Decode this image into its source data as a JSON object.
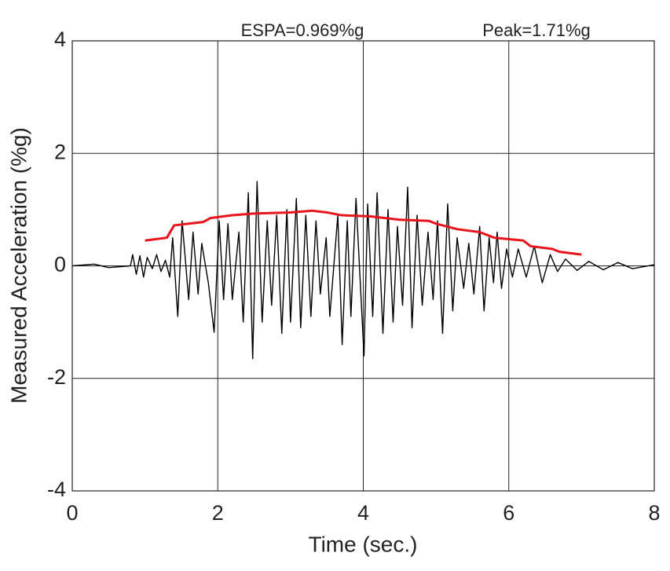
{
  "chart_data": {
    "type": "line",
    "xlabel": "Time (sec.)",
    "ylabel": "Measured Acceleration (%g)",
    "annotations": [
      "ESPA=0.969%g",
      "Peak=1.71%g"
    ],
    "xlim": [
      0,
      8
    ],
    "xticks": [
      0,
      2,
      4,
      6,
      8
    ],
    "ylim": [
      -4,
      4
    ],
    "yticks": [
      -4,
      -2,
      0,
      2,
      4
    ],
    "grid": true,
    "series": [
      {
        "color": "#000000",
        "x": [
          0,
          0.3,
          0.5,
          0.8,
          0.83,
          0.88,
          0.93,
          0.98,
          1.03,
          1.1,
          1.16,
          1.22,
          1.28,
          1.34,
          1.38,
          1.45,
          1.51,
          1.6,
          1.66,
          1.73,
          1.78,
          1.87,
          1.95,
          2.02,
          2.08,
          2.14,
          2.2,
          2.29,
          2.35,
          2.42,
          2.48,
          2.54,
          2.61,
          2.68,
          2.74,
          2.81,
          2.88,
          2.95,
          3.0,
          3.08,
          3.14,
          3.21,
          3.28,
          3.35,
          3.41,
          3.49,
          3.54,
          3.65,
          3.71,
          3.78,
          3.83,
          3.9,
          4.01,
          4.06,
          4.13,
          4.19,
          4.27,
          4.34,
          4.41,
          4.47,
          4.54,
          4.61,
          4.67,
          4.74,
          4.81,
          4.89,
          4.96,
          5.02,
          5.09,
          5.16,
          5.23,
          5.29,
          5.38,
          5.45,
          5.52,
          5.6,
          5.66,
          5.73,
          5.79,
          5.84,
          5.9,
          5.97,
          6.05,
          6.13,
          6.24,
          6.35,
          6.46,
          6.57,
          6.67,
          6.78,
          6.94,
          7.1,
          7.3,
          7.5,
          7.7,
          8
        ],
        "values": [
          0,
          0.03,
          -0.03,
          0,
          0.2,
          -0.15,
          0.18,
          -0.2,
          0.15,
          -0.05,
          0.2,
          -0.1,
          0.1,
          -0.2,
          0.5,
          -0.9,
          0.8,
          -0.6,
          0.6,
          -0.5,
          0.4,
          -0.3,
          -1.18,
          0.8,
          -0.6,
          0.75,
          -0.6,
          0.6,
          -1.0,
          1.3,
          -1.65,
          1.5,
          -1.0,
          0.8,
          -0.7,
          0.9,
          -1.2,
          1.0,
          -1.0,
          1.2,
          -1.1,
          0.9,
          -0.9,
          0.8,
          -0.5,
          0.5,
          -0.9,
          0.9,
          -1.4,
          0.8,
          -0.9,
          1.2,
          -1.6,
          1.1,
          -0.9,
          1.3,
          -1.2,
          1.0,
          -1.0,
          0.7,
          -0.7,
          1.4,
          -1.1,
          0.9,
          -0.7,
          0.6,
          -0.6,
          0.8,
          -1.2,
          1.1,
          -0.8,
          0.5,
          -0.4,
          0.4,
          -0.5,
          0.7,
          -0.8,
          0.5,
          -0.3,
          0.6,
          -0.4,
          0.3,
          -0.2,
          0.3,
          -0.2,
          0.35,
          -0.3,
          0.2,
          -0.1,
          0.12,
          -0.08,
          0.08,
          -0.07,
          0.06,
          -0.05,
          0.02
        ]
      },
      {
        "color": "#e8141c",
        "x": [
          1.0,
          1.3,
          1.4,
          1.6,
          1.8,
          1.9,
          2.2,
          2.5,
          3.0,
          3.3,
          3.5,
          3.7,
          4.1,
          4.5,
          4.9,
          5.0,
          5.3,
          5.6,
          5.8,
          6.2,
          6.3,
          6.6,
          6.7,
          7.0
        ],
        "values": [
          0.45,
          0.5,
          0.72,
          0.75,
          0.78,
          0.85,
          0.9,
          0.93,
          0.95,
          0.98,
          0.95,
          0.9,
          0.88,
          0.82,
          0.8,
          0.75,
          0.65,
          0.6,
          0.5,
          0.45,
          0.35,
          0.3,
          0.25,
          0.2
        ]
      }
    ]
  }
}
